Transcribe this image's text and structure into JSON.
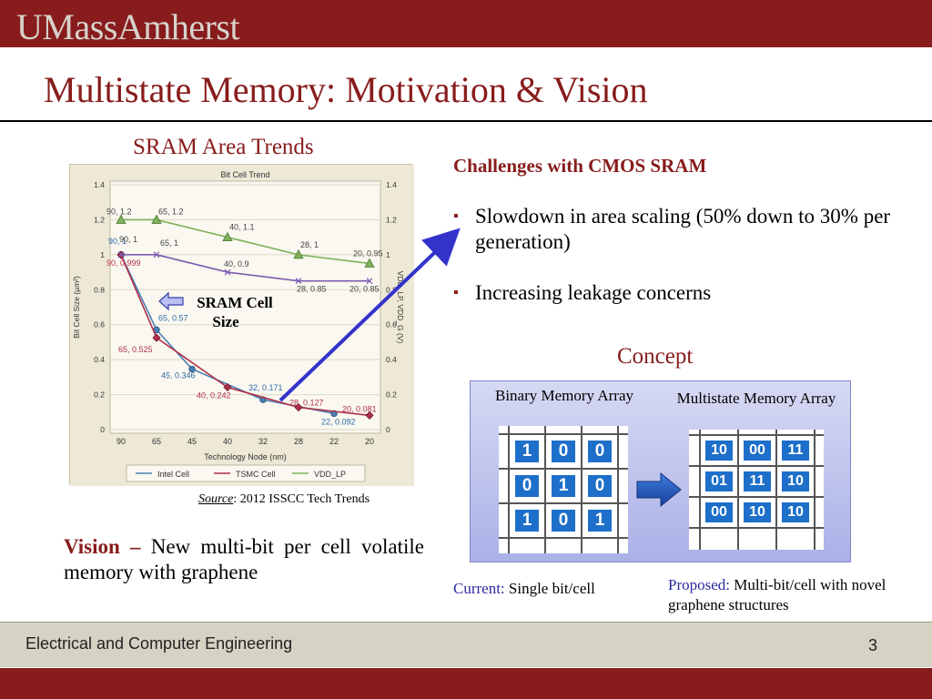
{
  "header": {
    "logo": "UMassAmherst"
  },
  "slide": {
    "title": "Multistate Memory: Motivation & Vision"
  },
  "left": {
    "chart_heading": "SRAM  Area Trends",
    "source_label": "Source",
    "source_text": ": 2012 ISSCC Tech Trends",
    "callout": "SRAM Cell Size",
    "vision_label": "Vision",
    "vision_dash": " – ",
    "vision_text": "New multi-bit per cell volatile memory with graphene"
  },
  "right": {
    "challenges_heading": "Challenges with CMOS SRAM",
    "bullets": [
      "Slowdown in area scaling (50% down to 30% per generation)",
      "Increasing leakage concerns"
    ],
    "concept_heading": "Concept",
    "binary_label": "Binary Memory Array",
    "multistate_label": "Multistate Memory Array",
    "binary_cells": [
      "1",
      "0",
      "0",
      "0",
      "1",
      "0",
      "1",
      "0",
      "1"
    ],
    "multistate_cells": [
      "10",
      "00",
      "11",
      "01",
      "11",
      "10",
      "00",
      "10",
      "10"
    ],
    "current_label": "Current:",
    "current_text": " Single bit/cell",
    "proposed_label": "Proposed:",
    "proposed_text": " Multi-bit/cell with novel graphene structures"
  },
  "footer": {
    "department": "Electrical and Computer Engineering",
    "page": "3"
  },
  "colors": {
    "brand": "#881c1c",
    "intel": "#4a7fb5",
    "tsmc": "#b0304a",
    "vdd": "#7fb05a"
  },
  "chart_data": {
    "type": "line",
    "title": "Bit Cell Trend",
    "xlabel": "Technology Node (nm)",
    "ylabel": "Bit Cell Size (µm²)",
    "y2label": "VDD_LP, VDD_G (V)",
    "categories": [
      "90",
      "65",
      "45",
      "40",
      "32",
      "28",
      "22",
      "20"
    ],
    "ylim": [
      0,
      1.4
    ],
    "yticks": [
      "0",
      "0.2",
      "0.4",
      "0.6",
      "0.8",
      "1",
      "1.2",
      "1.4"
    ],
    "legend_position": "bottom",
    "series": [
      {
        "name": "Intel Cell",
        "color": "#4a7fb5",
        "marker": "circle",
        "points": [
          [
            0,
            1
          ],
          [
            1,
            0.57
          ],
          [
            2,
            0.346
          ],
          [
            4,
            0.171
          ],
          [
            6,
            0.092
          ]
        ],
        "labels": [
          "90, 1",
          "65, 0.57",
          "45, 0.346",
          "32, 0.171",
          "22, 0.092"
        ]
      },
      {
        "name": "TSMC Cell",
        "color": "#b0304a",
        "marker": "diamond",
        "points": [
          [
            0,
            0.999
          ],
          [
            1,
            0.525
          ],
          [
            3,
            0.242
          ],
          [
            5,
            0.127
          ],
          [
            7,
            0.081
          ]
        ],
        "labels": [
          "90, 0.999",
          "65, 0.525",
          "40, 0.242",
          "28, 0.127",
          "20, 0.081"
        ]
      },
      {
        "name": "VDD_LP",
        "color": "#7fb05a",
        "marker": "triangle",
        "points": [
          [
            0,
            1.2
          ],
          [
            1,
            1.2
          ],
          [
            3,
            1.1
          ],
          [
            5,
            1
          ],
          [
            7,
            0.95
          ]
        ],
        "labels": [
          "90, 1.2",
          "65, 1.2",
          "40, 1.1",
          "28, 1",
          "20, 0.95"
        ]
      },
      {
        "name": "",
        "color": "#7c5cb0",
        "marker": "cross",
        "points": [
          [
            0,
            1
          ],
          [
            1,
            1
          ],
          [
            3,
            0.9
          ],
          [
            5,
            0.85
          ],
          [
            7,
            0.85
          ]
        ],
        "labels": [
          "90, 1",
          "65, 1",
          "40, 0.9",
          "28, 0.85",
          "20, 0.85"
        ]
      }
    ]
  }
}
